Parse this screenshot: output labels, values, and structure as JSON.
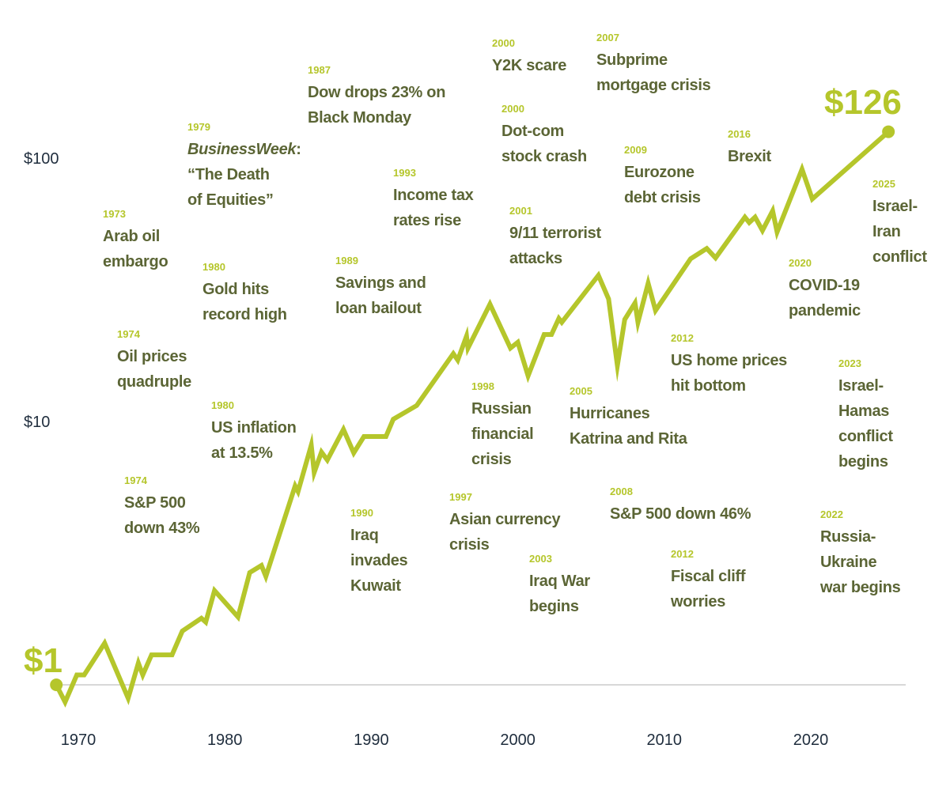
{
  "chart_data": {
    "type": "line",
    "title": "",
    "xlabel": "",
    "ylabel": "",
    "y_scale": "log",
    "x_ticks": [
      "1970",
      "1980",
      "1990",
      "2000",
      "2010",
      "2020"
    ],
    "y_ticks": [
      "$10",
      "$100"
    ],
    "start_label": "$1",
    "end_label": "$126",
    "colors": {
      "line": "#b5c62b",
      "event_text": "#5b6535",
      "event_year": "#b5c62b",
      "axis_text": "#1f2d3d",
      "baseline": "#cccccc"
    },
    "series": [
      {
        "points": [
          [
            1968.5,
            1.0
          ],
          [
            1969.1,
            0.86
          ],
          [
            1969.9,
            1.09
          ],
          [
            1970.4,
            1.09
          ],
          [
            1971.8,
            1.44
          ],
          [
            1973.4,
            0.89
          ],
          [
            1974.1,
            1.21
          ],
          [
            1974.4,
            1.09
          ],
          [
            1975.0,
            1.3
          ],
          [
            1976.4,
            1.3
          ],
          [
            1977.1,
            1.6
          ],
          [
            1978.4,
            1.79
          ],
          [
            1978.7,
            1.73
          ],
          [
            1979.3,
            2.28
          ],
          [
            1980.9,
            1.81
          ],
          [
            1981.7,
            2.67
          ],
          [
            1982.5,
            2.84
          ],
          [
            1982.8,
            2.58
          ],
          [
            1984.8,
            5.69
          ],
          [
            1985.0,
            5.42
          ],
          [
            1985.9,
            8.13
          ],
          [
            1986.1,
            6.4
          ],
          [
            1986.6,
            7.65
          ],
          [
            1987.0,
            7.14
          ],
          [
            1988.1,
            9.33
          ],
          [
            1988.8,
            7.6
          ],
          [
            1989.5,
            8.77
          ],
          [
            1991.0,
            8.77
          ],
          [
            1991.5,
            10.2
          ],
          [
            1993.1,
            11.5
          ],
          [
            1995.6,
            18.1
          ],
          [
            1995.9,
            17.1
          ],
          [
            1996.5,
            21.1
          ],
          [
            1996.6,
            19.0
          ],
          [
            1998.1,
            27.9
          ],
          [
            1999.5,
            19.0
          ],
          [
            2000.0,
            20.0
          ],
          [
            2000.7,
            14.9
          ],
          [
            2001.8,
            21.4
          ],
          [
            2002.3,
            21.4
          ],
          [
            2002.8,
            24.6
          ],
          [
            2003.0,
            23.8
          ],
          [
            2005.5,
            35.9
          ],
          [
            2006.2,
            29.2
          ],
          [
            2006.8,
            16.3
          ],
          [
            2007.3,
            24.4
          ],
          [
            2008.0,
            28.2
          ],
          [
            2008.2,
            23.8
          ],
          [
            2008.9,
            33.5
          ],
          [
            2009.4,
            26.4
          ],
          [
            2011.8,
            41.5
          ],
          [
            2012.9,
            45.4
          ],
          [
            2013.5,
            41.8
          ],
          [
            2015.5,
            59.7
          ],
          [
            2015.8,
            56.9
          ],
          [
            2016.2,
            59.7
          ],
          [
            2016.7,
            53.1
          ],
          [
            2017.4,
            63.1
          ],
          [
            2017.7,
            52.4
          ],
          [
            2019.4,
            90.8
          ],
          [
            2020.1,
            70.0
          ],
          [
            2025.3,
            126
          ]
        ]
      }
    ],
    "annotations": [
      {
        "year": "1973",
        "lines": [
          "Arab oil",
          "embargo"
        ]
      },
      {
        "year": "1974",
        "lines": [
          "Oil prices",
          "quadruple"
        ]
      },
      {
        "year": "1974",
        "lines": [
          "S&P 500",
          "down 43%"
        ]
      },
      {
        "year": "1979",
        "lines": [
          "BusinessWeek:",
          "“The Death",
          "of Equities”"
        ],
        "italic_lead": "BusinessWeek"
      },
      {
        "year": "1980",
        "lines": [
          "Gold hits",
          "record high"
        ]
      },
      {
        "year": "1980",
        "lines": [
          "US inflation",
          "at 13.5%"
        ]
      },
      {
        "year": "1987",
        "lines": [
          "Dow drops 23% on",
          "Black Monday"
        ]
      },
      {
        "year": "1989",
        "lines": [
          "Savings and",
          "loan bailout"
        ]
      },
      {
        "year": "1990",
        "lines": [
          "Iraq",
          "invades",
          "Kuwait"
        ]
      },
      {
        "year": "1993",
        "lines": [
          "Income tax",
          "rates rise"
        ]
      },
      {
        "year": "1997",
        "lines": [
          "Asian currency",
          "crisis"
        ]
      },
      {
        "year": "1998",
        "lines": [
          "Russian",
          "financial",
          "crisis"
        ]
      },
      {
        "year": "2000",
        "lines": [
          "Y2K scare"
        ]
      },
      {
        "year": "2000",
        "lines": [
          "Dot-com",
          "stock crash"
        ]
      },
      {
        "year": "2001",
        "lines": [
          "9/11 terrorist",
          "attacks"
        ]
      },
      {
        "year": "2003",
        "lines": [
          "Iraq War",
          "begins"
        ]
      },
      {
        "year": "2005",
        "lines": [
          "Hurricanes",
          "Katrina and Rita"
        ]
      },
      {
        "year": "2007",
        "lines": [
          "Subprime",
          "mortgage crisis"
        ]
      },
      {
        "year": "2008",
        "lines": [
          "S&P 500 down 46%"
        ]
      },
      {
        "year": "2009",
        "lines": [
          "Eurozone",
          "debt crisis"
        ]
      },
      {
        "year": "2012",
        "lines": [
          "US home prices",
          "hit bottom"
        ]
      },
      {
        "year": "2012",
        "lines": [
          "Fiscal cliff",
          "worries"
        ]
      },
      {
        "year": "2016",
        "lines": [
          "Brexit"
        ]
      },
      {
        "year": "2020",
        "lines": [
          "COVID-19",
          "pandemic"
        ]
      },
      {
        "year": "2022",
        "lines": [
          "Russia-",
          "Ukraine",
          "war begins"
        ]
      },
      {
        "year": "2023",
        "lines": [
          "Israel-",
          "Hamas",
          "conflict",
          "begins"
        ]
      },
      {
        "year": "2025",
        "lines": [
          "Israel-",
          "Iran",
          "conflict"
        ]
      }
    ]
  }
}
